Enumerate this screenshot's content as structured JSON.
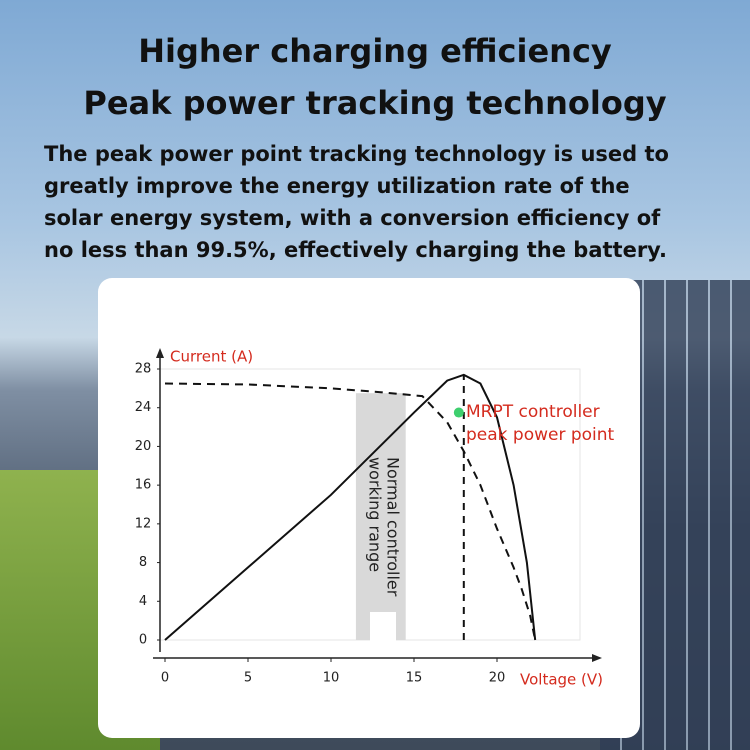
{
  "header": {
    "title": [
      "Higher charging efficiency",
      "Peak power tracking technology"
    ],
    "body": [
      "The peak power point tracking technology is used to",
      "greatly improve the energy utilization rate of the",
      "solar energy system, with a conversion efficiency of",
      "no less than 99.5%, effectively charging the battery."
    ]
  },
  "chart_data": {
    "type": "line",
    "x_label": "Voltage (V)",
    "y_label": "Current (A)",
    "xlim": [
      0,
      25
    ],
    "ylim": [
      0,
      28
    ],
    "xticks": [
      0,
      5,
      10,
      15,
      20
    ],
    "yticks": [
      0,
      4,
      8,
      12,
      16,
      20,
      24,
      28
    ],
    "series": [
      {
        "color": "#111111",
        "dashed": true,
        "x": [
          0,
          5,
          10,
          13,
          15.5,
          17,
          18,
          19,
          20,
          21,
          21.5,
          22,
          22.3
        ],
        "values": [
          26.5,
          26.4,
          26,
          25.6,
          25.2,
          22.5,
          19.5,
          16,
          11.5,
          7.5,
          5.2,
          2.5,
          0
        ]
      },
      {
        "color": "#111111",
        "dashed": false,
        "x": [
          0,
          5,
          10,
          15,
          17,
          18,
          19,
          20,
          21,
          21.8,
          22.3
        ],
        "values": [
          0,
          7.5,
          15,
          23.5,
          26.8,
          27.4,
          26.5,
          23,
          16,
          8,
          0
        ]
      }
    ],
    "highlight_range": {
      "x": [
        11.5,
        14.5
      ],
      "y": [
        0,
        25.5
      ],
      "color": "#d9d9d9",
      "label": [
        "Normal controller",
        "working range"
      ]
    },
    "marker_line": {
      "x": 18,
      "y": [
        0,
        27.4
      ]
    },
    "peak_point": {
      "x": 17.7,
      "y": 23.5,
      "color": "#3ecf6e",
      "label": [
        "MRPT controller",
        "peak power point"
      ]
    },
    "accent_color": "#d42b1e"
  }
}
